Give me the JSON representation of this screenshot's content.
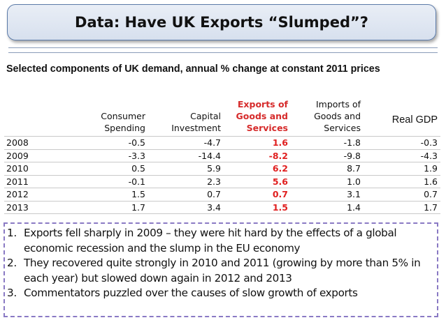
{
  "title": "Data: Have UK Exports “Slumped”?",
  "subtitle": "Selected components of UK demand, annual % change at constant 2011 prices",
  "table": {
    "headers": [
      "",
      "Consumer Spending",
      "Capital Investment",
      "Exports of Goods and Services",
      "Imports of Goods and Services",
      "Real GDP"
    ],
    "rows": [
      [
        "2008",
        "-0.5",
        "-4.7",
        "1.6",
        "-1.8",
        "-0.3"
      ],
      [
        "2009",
        "-3.3",
        "-14.4",
        "-8.2",
        "-9.8",
        "-4.3"
      ],
      [
        "2010",
        "0.5",
        "5.9",
        "6.2",
        "8.7",
        "1.9"
      ],
      [
        "2011",
        "-0.1",
        "2.3",
        "5.6",
        "1.0",
        "1.6"
      ],
      [
        "2012",
        "1.5",
        "0.7",
        "0.7",
        "3.1",
        "0.7"
      ],
      [
        "2013",
        "1.7",
        "3.4",
        "1.5",
        "1.4",
        "1.7"
      ]
    ]
  },
  "notes": [
    {
      "num": "1.",
      "text": "Exports fell sharply in 2009 – they were hit hard by the effects of a global economic recession and the slump in the EU economy"
    },
    {
      "num": "2.",
      "text": "They recovered quite strongly in 2010 and 2011 (growing by more than 5% in each year) but slowed down again in 2012 and 2013"
    },
    {
      "num": "3.",
      "text": "Commentators puzzled over the causes of slow growth of exports"
    }
  ],
  "colors": {
    "exports_highlight": "#e02020",
    "title_border": "#5b7aa8",
    "notes_border": "#8a7ac4"
  }
}
